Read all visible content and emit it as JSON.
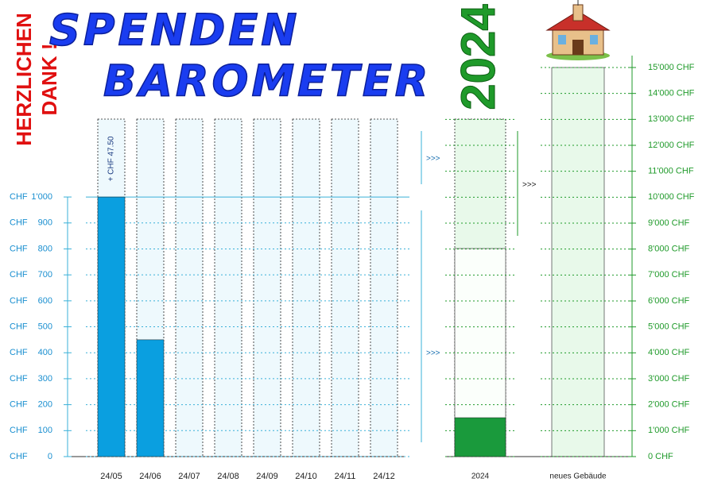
{
  "header": {
    "title_line1": "SPENDEN",
    "title_line2": "BAROMETER",
    "thanks_line1": "HERZLICHEN",
    "thanks_line2": "DANK !",
    "year": "2024"
  },
  "connectors": [
    ">>>",
    ">>>",
    ">>>"
  ],
  "chart_data": [
    {
      "type": "bar",
      "unit": "CHF",
      "categories": [
        "24/05",
        "24/06",
        "24/07",
        "24/08",
        "24/09",
        "24/10",
        "24/11",
        "24/12"
      ],
      "values": [
        1000,
        450,
        null,
        null,
        null,
        null,
        null,
        null
      ],
      "color": "#0a9fe0",
      "annotations": [
        {
          "category": "24/05",
          "text": "+ CHF 47.50"
        }
      ],
      "ylim": [
        0,
        1300
      ],
      "yticks": [
        0,
        100,
        200,
        300,
        400,
        500,
        600,
        700,
        800,
        900,
        {
          "value": 1000,
          "label": "1'000"
        }
      ],
      "grid": true
    },
    {
      "type": "bar",
      "categories": [
        "2024",
        "neues Gebäude"
      ],
      "values": [
        1500,
        null
      ],
      "color": "#1a9a3c",
      "ylim": [
        0,
        15000
      ],
      "yticks": [
        {
          "value": 0,
          "label": "0 CHF"
        },
        {
          "value": 1000,
          "label": "1'000 CHF"
        },
        {
          "value": 2000,
          "label": "2'000 CHF"
        },
        {
          "value": 3000,
          "label": "3'000 CHF"
        },
        {
          "value": 4000,
          "label": "4'000 CHF"
        },
        {
          "value": 5000,
          "label": "5'000 CHF"
        },
        {
          "value": 6000,
          "label": "6'000 CHF"
        },
        {
          "value": 7000,
          "label": "7'000 CHF"
        },
        {
          "value": 8000,
          "label": "8'000 CHF"
        },
        {
          "value": 9000,
          "label": "9'000 CHF"
        },
        {
          "value": 10000,
          "label": "10'000 CHF"
        },
        {
          "value": 11000,
          "label": "11'000 CHF"
        },
        {
          "value": 12000,
          "label": "12'000 CHF"
        },
        {
          "value": 13000,
          "label": "13'000 CHF"
        },
        {
          "value": 14000,
          "label": "14'000 CHF"
        },
        {
          "value": 15000,
          "label": "15'000 CHF"
        }
      ],
      "grid": true
    }
  ]
}
